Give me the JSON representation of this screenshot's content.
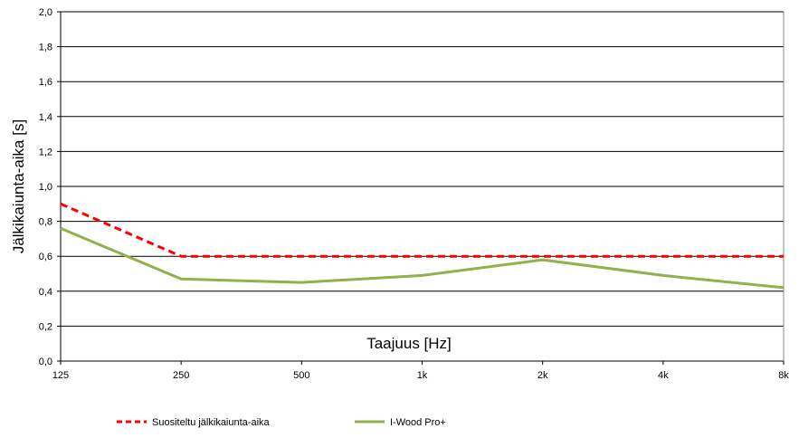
{
  "chart_data": {
    "type": "line",
    "title": "",
    "xlabel": "Taajuus [Hz]",
    "ylabel": "Jälkikaiunta-aika [s]",
    "categories": [
      "125",
      "250",
      "500",
      "1k",
      "2k",
      "4k",
      "8k"
    ],
    "ylim": [
      0,
      2.0
    ],
    "yticks": [
      "0,0",
      "0,2",
      "0,4",
      "0,6",
      "0,8",
      "1,0",
      "1,2",
      "1,4",
      "1,6",
      "1,8",
      "2,0"
    ],
    "grid": true,
    "legend_position": "bottom",
    "series": [
      {
        "name": "Suositeltu jälkikaiunta-aika",
        "color": "#ff0000",
        "style": "dashed",
        "values": [
          0.9,
          0.6,
          0.6,
          0.6,
          0.6,
          0.6,
          0.6
        ]
      },
      {
        "name": "I-Wood Pro+",
        "color": "#92b04d",
        "style": "solid",
        "values": [
          0.76,
          0.47,
          0.45,
          0.49,
          0.58,
          0.49,
          0.42
        ]
      }
    ]
  }
}
